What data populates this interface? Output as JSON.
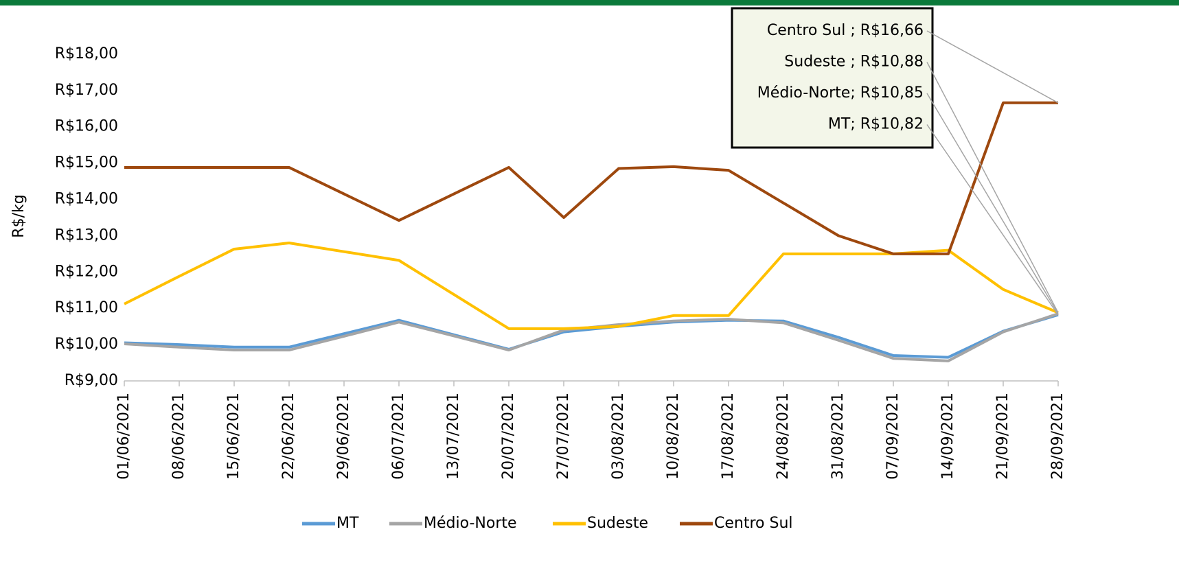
{
  "chart_data": {
    "type": "line",
    "y_label": "R$/kg",
    "x": [
      "01/06/2021",
      "08/06/2021",
      "15/06/2021",
      "22/06/2021",
      "29/06/2021",
      "06/07/2021",
      "13/07/2021",
      "20/07/2021",
      "27/07/2021",
      "03/08/2021",
      "10/08/2021",
      "17/08/2021",
      "24/08/2021",
      "31/08/2021",
      "07/09/2021",
      "14/09/2021",
      "21/09/2021",
      "28/09/2021"
    ],
    "ylim": [
      9,
      18.5
    ],
    "yticks": [
      {
        "value": 9,
        "label": "R$9,00"
      },
      {
        "value": 10,
        "label": "R$10,00"
      },
      {
        "value": 11,
        "label": "R$11,00"
      },
      {
        "value": 12,
        "label": "R$12,00"
      },
      {
        "value": 13,
        "label": "R$13,00"
      },
      {
        "value": 14,
        "label": "R$14,00"
      },
      {
        "value": 15,
        "label": "R$15,00"
      },
      {
        "value": 16,
        "label": "R$16,00"
      },
      {
        "value": 17,
        "label": "R$17,00"
      },
      {
        "value": 18,
        "label": "R$18,00"
      }
    ],
    "legend": "bottom",
    "series": [
      {
        "name": "MT",
        "color": "#5b9bd5",
        "values": [
          10.05,
          10.0,
          9.93,
          9.93,
          10.3,
          10.67,
          10.27,
          9.87,
          10.35,
          10.5,
          10.62,
          10.67,
          10.65,
          10.2,
          9.7,
          9.65,
          10.37,
          10.82
        ],
        "value_labels": [
          null,
          null,
          null,
          null,
          null,
          null,
          null,
          null,
          null,
          null,
          null,
          null,
          null,
          null,
          null,
          null,
          null,
          "MT;  R$10,82"
        ]
      },
      {
        "name": "Médio-Norte",
        "color": "#a5a5a5",
        "values": [
          10.02,
          9.93,
          9.85,
          9.85,
          10.23,
          10.62,
          10.24,
          9.85,
          10.4,
          10.55,
          10.65,
          10.7,
          10.6,
          10.12,
          9.62,
          9.55,
          10.35,
          10.85
        ],
        "value_labels": [
          null,
          null,
          null,
          null,
          null,
          null,
          null,
          null,
          null,
          null,
          null,
          null,
          null,
          null,
          null,
          null,
          null,
          "Médio-Norte;  R$10,85"
        ]
      },
      {
        "name": "Sudeste",
        "color": "#ffc000",
        "values": [
          11.12,
          11.88,
          12.63,
          12.8,
          12.56,
          12.32,
          11.38,
          10.44,
          10.44,
          10.5,
          10.8,
          10.8,
          12.5,
          12.5,
          12.5,
          12.6,
          11.52,
          10.88
        ],
        "value_labels": [
          null,
          null,
          null,
          null,
          null,
          null,
          null,
          null,
          null,
          null,
          null,
          null,
          null,
          null,
          null,
          null,
          null,
          "Sudeste ;  R$10,88"
        ]
      },
      {
        "name": "Centro Sul",
        "color": "#9e480e",
        "values": [
          14.88,
          14.88,
          14.88,
          14.88,
          14.15,
          13.42,
          14.15,
          14.88,
          13.5,
          14.85,
          14.9,
          14.8,
          13.9,
          13.0,
          12.5,
          12.5,
          16.66,
          16.66
        ],
        "value_labels": [
          null,
          null,
          null,
          null,
          null,
          null,
          null,
          null,
          null,
          null,
          null,
          null,
          null,
          null,
          null,
          null,
          null,
          "Centro Sul ;  R$16,66"
        ]
      }
    ]
  }
}
